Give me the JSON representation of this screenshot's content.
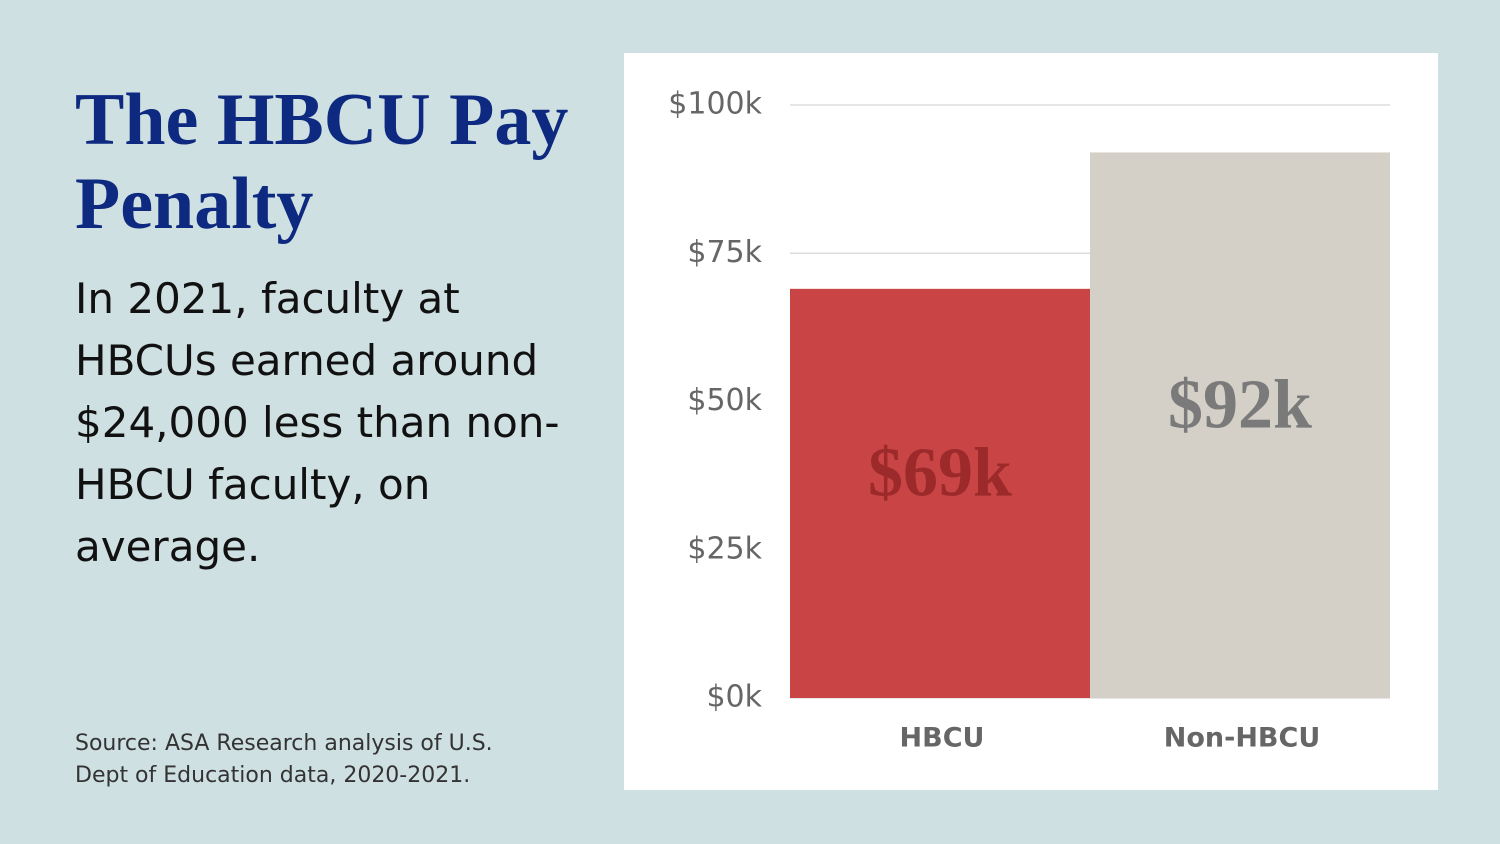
{
  "title": "The HBCU Pay Penalty",
  "subtitle": "In 2021, faculty at HBCUs earned around $24,000 less than non-HBCU faculty, on average.",
  "source": "Source: ASA Research analysis of U.S. Dept of Education data, 2020-2021.",
  "chart_data": {
    "type": "bar",
    "categories": [
      "HBCU",
      "Non-HBCU"
    ],
    "values": [
      69,
      92
    ],
    "value_labels": [
      "$69k",
      "$92k"
    ],
    "colors": [
      "#c94545",
      "#d5d0c7"
    ],
    "label_colors": [
      "#9c2a2a",
      "#7a7a7a"
    ],
    "ylim": [
      0,
      100
    ],
    "yticks": [
      {
        "value": 0,
        "label": "$0k"
      },
      {
        "value": 25,
        "label": "$25k"
      },
      {
        "value": 50,
        "label": "$50k"
      },
      {
        "value": 75,
        "label": "$75k"
      },
      {
        "value": 100,
        "label": "$100k"
      }
    ],
    "grid": true
  }
}
